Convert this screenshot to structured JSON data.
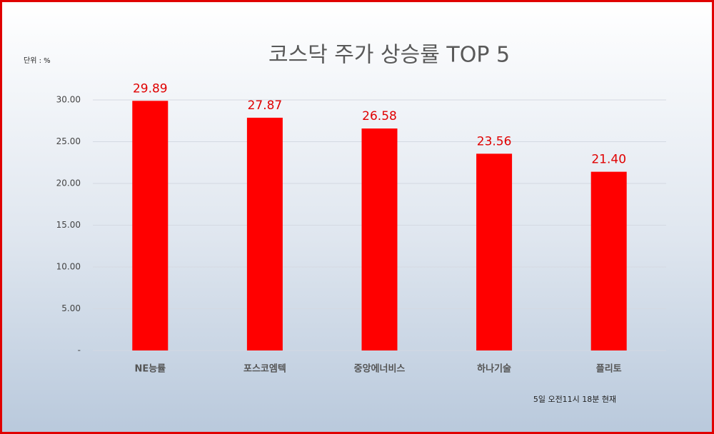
{
  "chart_data": {
    "type": "bar",
    "title": "코스닥 주가 상승률 TOP 5",
    "unit_label": "단위 : %",
    "note": "5일 오전11시 18분 현재",
    "categories": [
      "NE능률",
      "포스코엠텍",
      "중앙에너비스",
      "하나기술",
      "플리토"
    ],
    "values": [
      29.89,
      27.87,
      26.58,
      23.56,
      21.4
    ],
    "value_labels": [
      "29.89",
      "27.87",
      "26.58",
      "23.56",
      "21.40"
    ],
    "color": "#ff0000",
    "ylim": [
      0,
      30
    ],
    "yticks": [
      {
        "value": 0,
        "label": "-"
      },
      {
        "value": 5,
        "label": "5.00"
      },
      {
        "value": 10,
        "label": "10.00"
      },
      {
        "value": 15,
        "label": "15.00"
      },
      {
        "value": 20,
        "label": "20.00"
      },
      {
        "value": 25,
        "label": "25.00"
      },
      {
        "value": 30,
        "label": "30.00"
      }
    ],
    "grid": true
  }
}
